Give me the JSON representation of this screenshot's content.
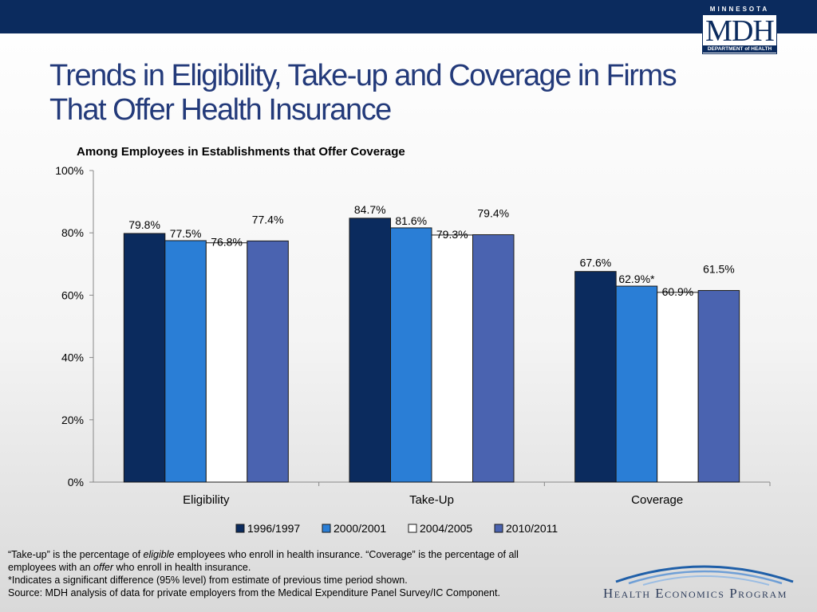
{
  "header": {
    "logo_top": "MINNESOTA",
    "logo_main": "MDH",
    "logo_bottom": "DEPARTMENT of HEALTH"
  },
  "slide": {
    "title_line1": "Trends in Eligibility, Take-up and Coverage in Firms",
    "title_line2": "That Offer Health Insurance"
  },
  "chart_data": {
    "type": "bar",
    "title": "Among Employees in Establishments that Offer Coverage",
    "categories": [
      "Eligibility",
      "Take-Up",
      "Coverage"
    ],
    "ylim": [
      0,
      100
    ],
    "yticks": [
      "0%",
      "20%",
      "40%",
      "60%",
      "80%",
      "100%"
    ],
    "grid": false,
    "legend_position": "bottom",
    "series": [
      {
        "name": "1996/1997",
        "color": "#0b2b5e",
        "values": [
          79.8,
          84.7,
          67.6
        ],
        "labels": [
          "79.8%",
          "84.7%",
          "67.6%"
        ]
      },
      {
        "name": "2000/2001",
        "color": "#2a7ed6",
        "values": [
          77.5,
          81.6,
          62.9
        ],
        "labels": [
          "77.5%",
          "81.6%",
          "62.9%*"
        ]
      },
      {
        "name": "2004/2005",
        "color": "#ffffff",
        "values": [
          76.8,
          79.3,
          60.9
        ],
        "labels": [
          "76.8%",
          "79.3%",
          "60.9%"
        ]
      },
      {
        "name": "2010/2011",
        "color": "#4a63b0",
        "values": [
          77.4,
          79.4,
          61.5
        ],
        "labels": [
          "77.4%",
          "79.4%",
          "61.5%"
        ]
      }
    ]
  },
  "footnotes": {
    "line1_a": "“Take-up” is the percentage of ",
    "line1_eligible": "eligible",
    "line1_b": " employees who enroll in health insurance.  “Coverage” is the percentage of all",
    "line2_a": "employees with an ",
    "line2_offer": "offer",
    "line2_b": " who enroll in health insurance.",
    "line3": "*Indicates a significant difference (95% level) from estimate of previous time period shown.",
    "line4": "Source: MDH analysis of data for private employers from the Medical Expenditure Panel Survey/IC Component."
  },
  "branding": {
    "program": "Health Economics Program"
  }
}
